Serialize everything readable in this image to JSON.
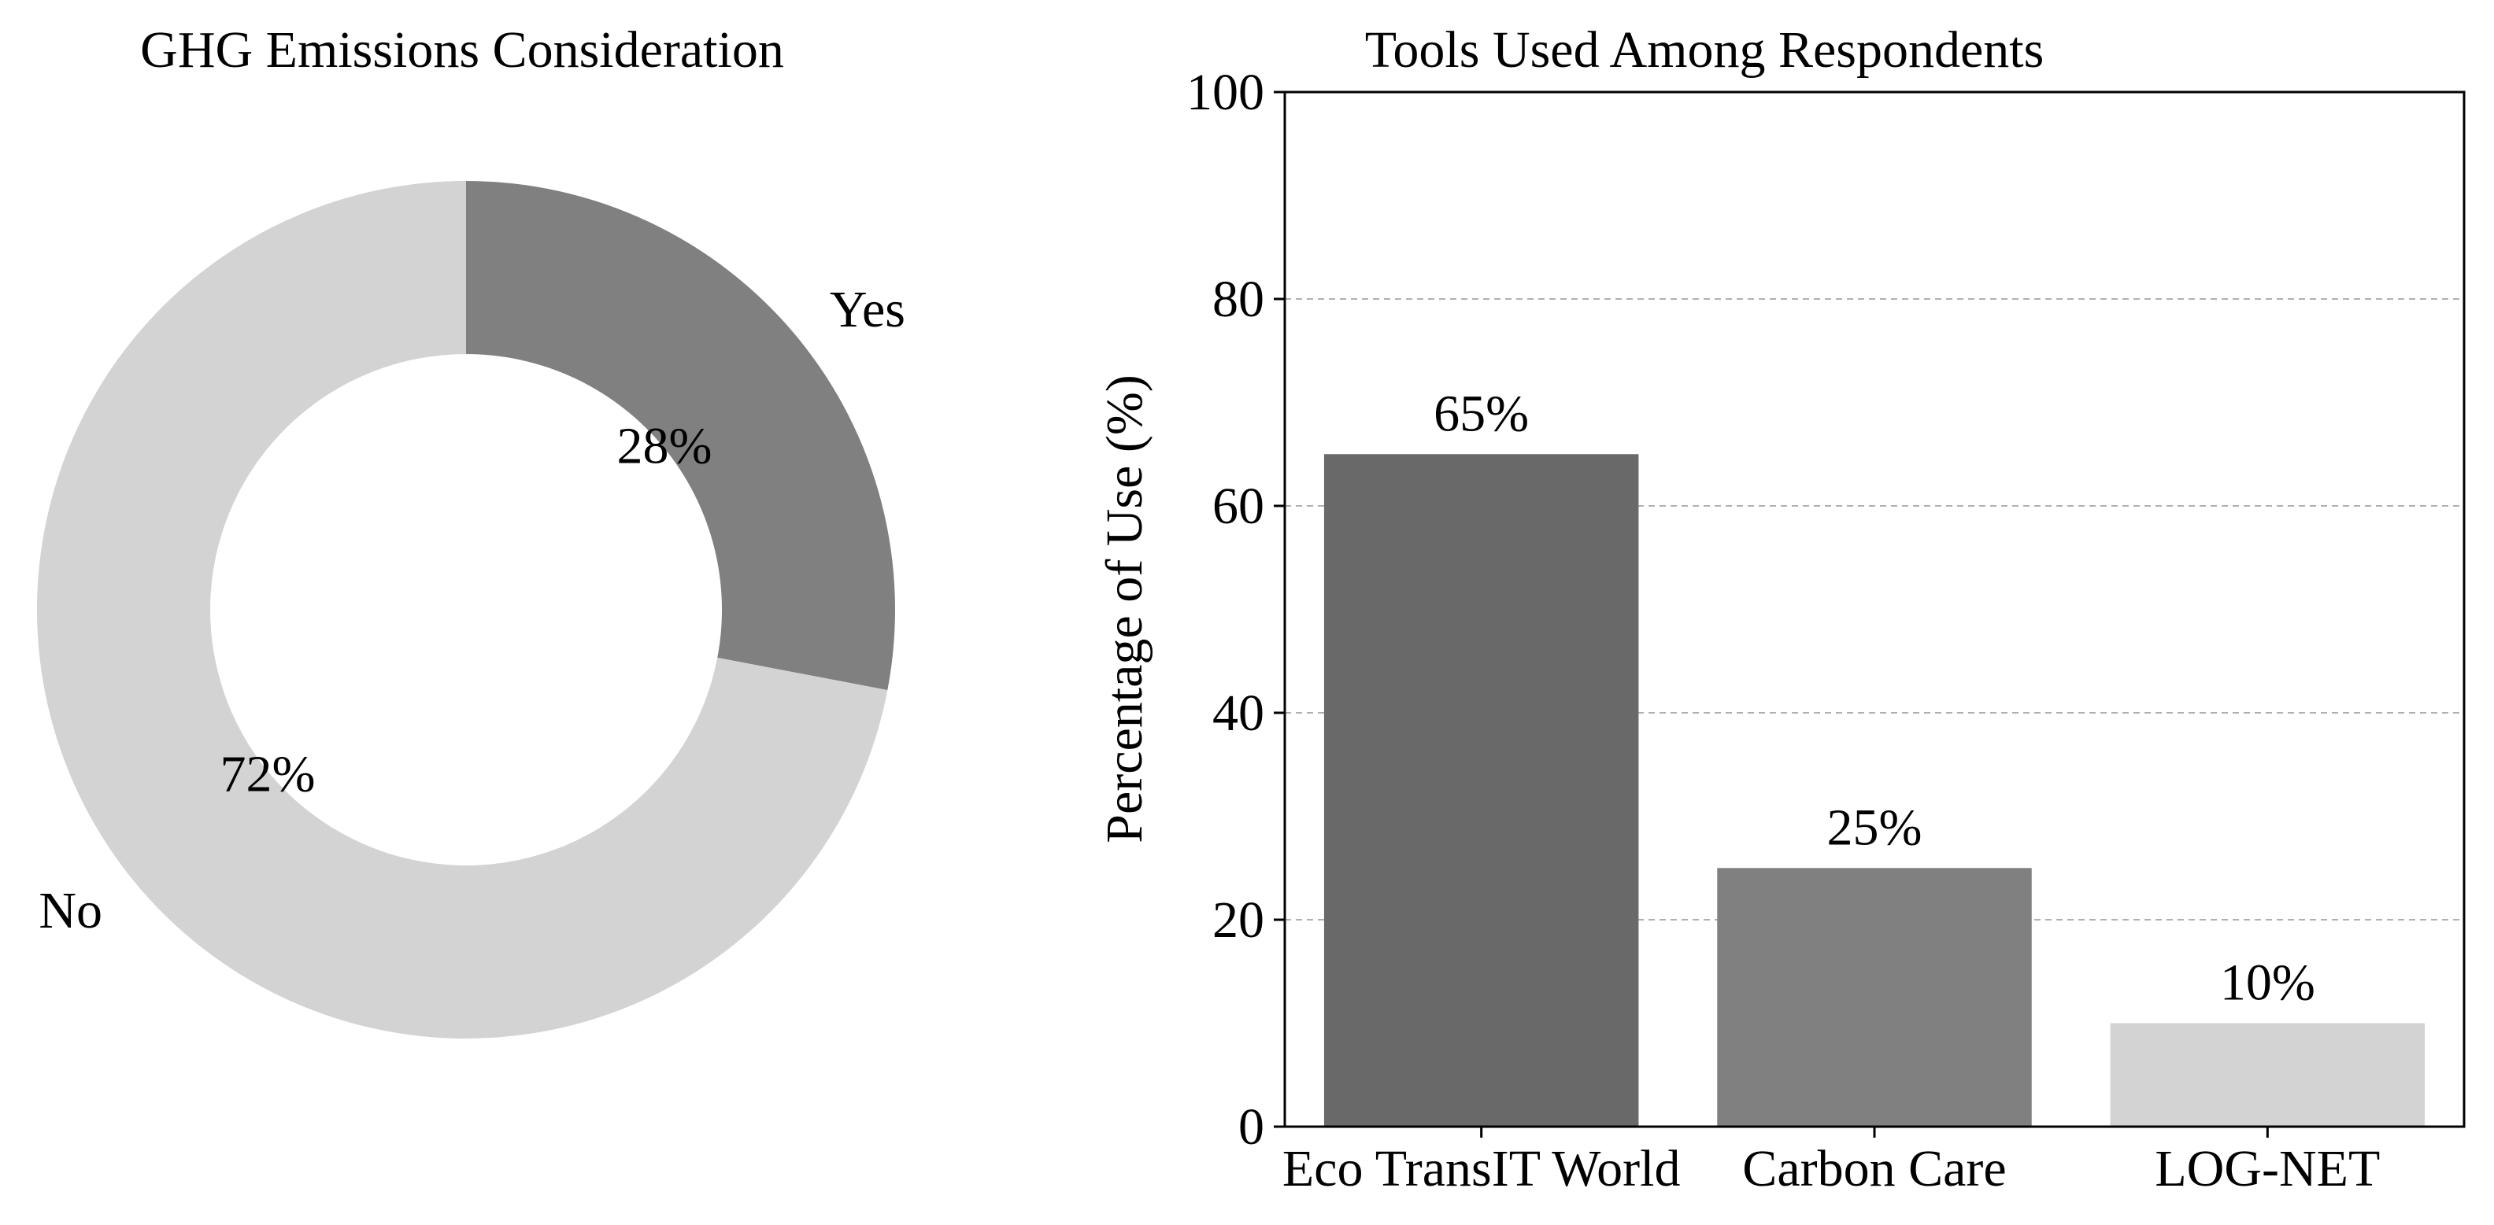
{
  "chart_data": [
    {
      "type": "pie",
      "title": "GHG Emissions Consideration",
      "donut": true,
      "start_angle": "12 o'clock, clockwise",
      "slices": [
        {
          "label": "Yes",
          "value": 28,
          "value_label": "28%",
          "color": "#808080"
        },
        {
          "label": "No",
          "value": 72,
          "value_label": "72%",
          "color": "#d3d3d3"
        }
      ]
    },
    {
      "type": "bar",
      "title": "Tools Used Among Respondents",
      "xlabel": "",
      "ylabel": "Percentage of Use (%)",
      "ylim": [
        0,
        100
      ],
      "yticks": [
        0,
        20,
        40,
        60,
        80,
        100
      ],
      "grid": "horizontal dashed",
      "categories": [
        "Eco TransIT World",
        "Carbon Care",
        "LOG-NET"
      ],
      "values": [
        65,
        25,
        10
      ],
      "value_labels": [
        "65%",
        "25%",
        "10%"
      ],
      "colors": [
        "#696969",
        "#808080",
        "#d3d3d3"
      ]
    }
  ]
}
